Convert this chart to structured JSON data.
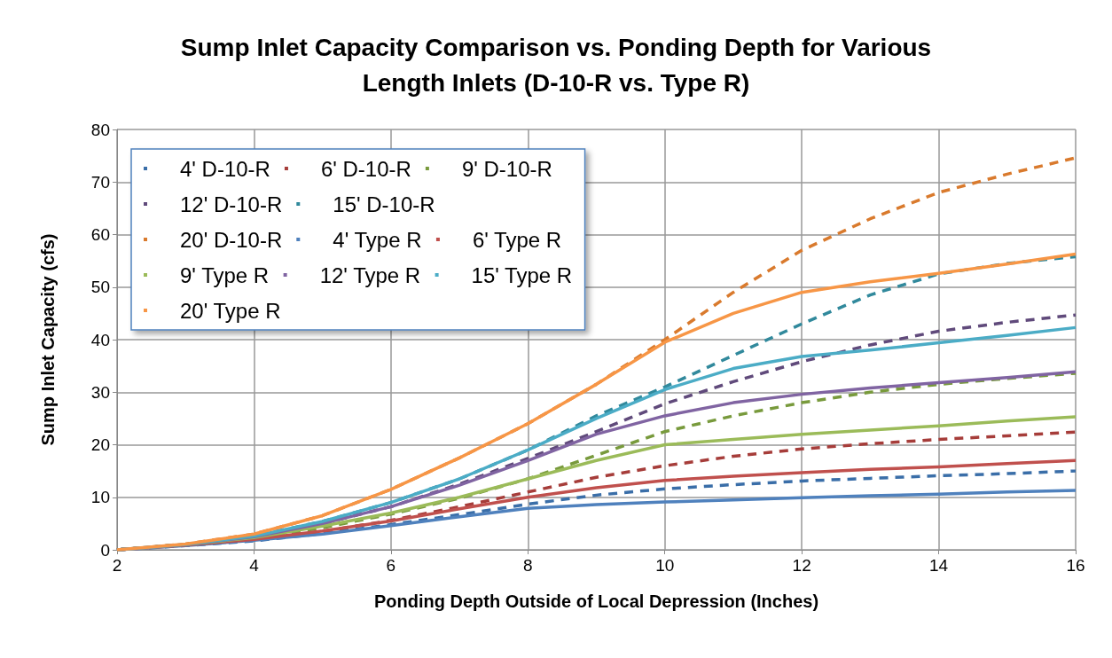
{
  "chart_data": {
    "type": "line",
    "title": "Sump Inlet Capacity Comparison vs. Ponding Depth for Various\nLength Inlets (D-10-R vs. Type R)",
    "xlabel": "Ponding Depth Outside of Local Depression (Inches)",
    "ylabel": "Sump Inlet Capacity (cfs)",
    "x": [
      2,
      3,
      4,
      5,
      6,
      7,
      8,
      9,
      10,
      11,
      12,
      13,
      14,
      15,
      16
    ],
    "xlim": [
      2,
      16
    ],
    "xticks": [
      2,
      4,
      6,
      8,
      10,
      12,
      14,
      16
    ],
    "ylim": [
      0,
      80
    ],
    "yticks": [
      0,
      10,
      20,
      30,
      40,
      50,
      60,
      70,
      80
    ],
    "grid": true,
    "legend": "top left",
    "marker": "none",
    "series": [
      {
        "name": "4' D-10-R",
        "color": "#3a6ea8",
        "line_style": "dashed",
        "values": [
          0,
          0.8,
          1.7,
          3.1,
          4.8,
          6.7,
          8.7,
          10.4,
          11.6,
          12.4,
          13.1,
          13.6,
          14.1,
          14.5,
          15
        ]
      },
      {
        "name": "6' D-10-R",
        "color": "#a63d3a",
        "line_style": "dashed",
        "values": [
          0,
          0.9,
          2,
          3.5,
          5.6,
          8.2,
          11,
          13.8,
          16,
          17.8,
          19.2,
          20.2,
          21,
          21.7,
          22.4
        ]
      },
      {
        "name": "9' D-10-R",
        "color": "#789a3c",
        "line_style": "dashed",
        "values": [
          0,
          1,
          2.2,
          4.2,
          6.8,
          9.8,
          13.5,
          18,
          22.5,
          25.5,
          28,
          30,
          31.5,
          32.6,
          33.6
        ]
      },
      {
        "name": "12' D-10-R",
        "color": "#604a7b",
        "line_style": "dashed",
        "values": [
          0,
          1,
          2.5,
          5,
          8.2,
          12.5,
          17.4,
          22.5,
          27.8,
          32,
          35.8,
          39,
          41.6,
          43.3,
          44.7
        ]
      },
      {
        "name": "15' D-10-R",
        "color": "#31899c",
        "line_style": "dashed",
        "values": [
          0,
          1,
          2.6,
          5.4,
          9,
          13.5,
          19,
          25.5,
          31,
          37,
          43,
          48.5,
          52.5,
          54.5,
          55.8
        ]
      },
      {
        "name": "20' D-10-R",
        "color": "#d97a2d",
        "line_style": "dashed",
        "values": [
          0,
          1.1,
          3,
          6.5,
          11.5,
          17.5,
          24,
          31.5,
          40,
          49,
          57,
          63,
          68,
          71.5,
          74.6
        ]
      },
      {
        "name": "4' Type R",
        "color": "#4f81bd",
        "line_style": "solid",
        "values": [
          0,
          0.8,
          1.8,
          3,
          4.6,
          6.3,
          7.9,
          8.6,
          9.1,
          9.5,
          9.9,
          10.3,
          10.6,
          11,
          11.3
        ]
      },
      {
        "name": "6' Type R",
        "color": "#c0504d",
        "line_style": "solid",
        "values": [
          0,
          0.9,
          2,
          3.6,
          5.5,
          7.8,
          10,
          11.8,
          13.2,
          14,
          14.7,
          15.3,
          15.8,
          16.4,
          17
        ]
      },
      {
        "name": "9' Type R",
        "color": "#9bbb59",
        "line_style": "solid",
        "values": [
          0,
          1,
          2.3,
          4.5,
          7,
          10,
          13.5,
          17,
          20,
          21,
          22,
          22.8,
          23.6,
          24.5,
          25.3
        ]
      },
      {
        "name": "12' Type R",
        "color": "#8064a2",
        "line_style": "solid",
        "values": [
          0,
          1,
          2.5,
          5,
          8.2,
          12.3,
          17,
          22,
          25.5,
          28,
          29.6,
          30.8,
          31.8,
          32.8,
          33.9
        ]
      },
      {
        "name": "15' Type R",
        "color": "#4bacc6",
        "line_style": "solid",
        "values": [
          0,
          1,
          2.6,
          5.4,
          9,
          13.5,
          19,
          25,
          30.5,
          34.5,
          36.8,
          38,
          39.4,
          40.8,
          42.3
        ]
      },
      {
        "name": "20' Type R",
        "color": "#f79646",
        "line_style": "solid",
        "values": [
          0,
          1.1,
          3,
          6.5,
          11.5,
          17.5,
          24,
          31.5,
          39.5,
          45,
          49,
          51,
          52.6,
          54.4,
          56.3
        ]
      }
    ]
  }
}
